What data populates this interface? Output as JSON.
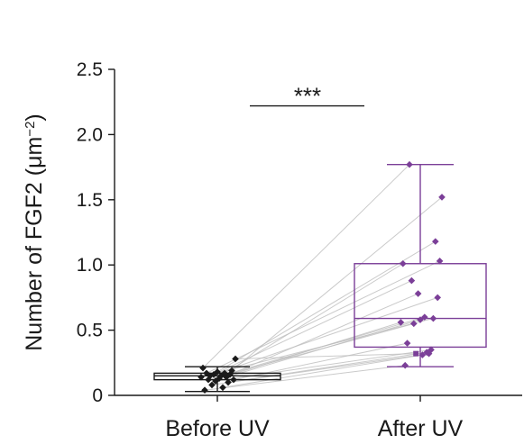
{
  "chart_data": {
    "type": "box",
    "title": "",
    "ylabel_main": "Number of FGF2 (μm",
    "ylabel_exp": "−2",
    "ylabel_close": ")",
    "xlabel": "",
    "ylim": [
      0,
      2.5
    ],
    "yticks": [
      0,
      0.5,
      1.0,
      1.5,
      2.0,
      2.5
    ],
    "ytick_labels": [
      "0",
      "0.5",
      "1.0",
      "1.5",
      "2.0",
      "2.5"
    ],
    "categories": [
      "Before UV",
      "After UV"
    ],
    "colors": {
      "before": "#1a1a1a",
      "after": "#7b3f98",
      "pair_line": "#bdbdbd",
      "axis": "#1a1a1a"
    },
    "significance": {
      "label": "***",
      "between": [
        "Before UV",
        "After UV"
      ],
      "y": 2.22
    },
    "series": [
      {
        "category": "Before UV",
        "box": {
          "whisker_low": 0.03,
          "q1": 0.12,
          "median": 0.15,
          "q3": 0.17,
          "whisker_high": 0.22
        },
        "values": [
          0.04,
          0.06,
          0.08,
          0.1,
          0.11,
          0.12,
          0.12,
          0.13,
          0.14,
          0.14,
          0.15,
          0.15,
          0.16,
          0.16,
          0.17,
          0.17,
          0.18,
          0.19,
          0.21,
          0.28
        ]
      },
      {
        "category": "After UV",
        "box": {
          "whisker_low": 0.22,
          "q1": 0.37,
          "median": 0.59,
          "q3": 1.01,
          "whisker_high": 1.77
        },
        "values": [
          0.23,
          0.31,
          0.32,
          0.33,
          0.35,
          0.4,
          0.55,
          0.56,
          0.58,
          0.59,
          0.6,
          0.75,
          0.78,
          0.88,
          1.01,
          1.03,
          1.18,
          1.52,
          1.77,
          0.32
        ]
      }
    ]
  }
}
